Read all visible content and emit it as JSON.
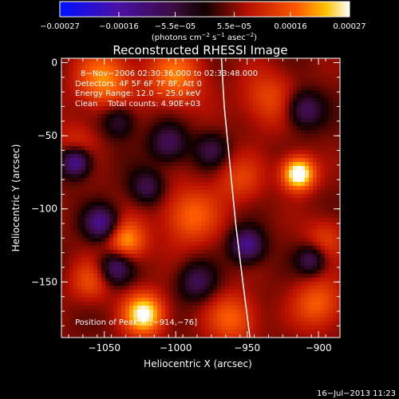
{
  "chart_data": {
    "type": "heatmap",
    "title": "Reconstructed RHESSI Image",
    "xlabel": "Heliocentric X (arcsec)",
    "ylabel": "Heliocentric Y (arcsec)",
    "xlim": [
      -1080,
      -885
    ],
    "ylim": [
      -188,
      3
    ],
    "x_ticks": [
      -1050,
      -1000,
      -950,
      -900
    ],
    "x_tick_labels": [
      "−1050",
      "−1000",
      "−950",
      "−900"
    ],
    "y_ticks": [
      0,
      -50,
      -100,
      -150
    ],
    "y_tick_labels": [
      "0",
      "−50",
      "−100",
      "−150"
    ],
    "colorbar": {
      "min": -0.00027,
      "max": 0.00027,
      "ticks": [
        -0.00027,
        -0.00016,
        -5.5e-05,
        5.5e-05,
        0.00016,
        0.00027
      ],
      "tick_labels": [
        "−0.00027",
        "−0.00016",
        "−5.5e−05",
        "5.5e−05",
        "0.00016",
        "0.00027"
      ],
      "units_line": "(photons cm",
      "units_exp1": "−2",
      "units_mid": " s",
      "units_exp2": "−1",
      "units_tail": " asec",
      "units_exp3": "−2",
      "units_close": ")"
    },
    "annotations": {
      "time_range": "8−Nov−2006 02:30:36.000 to 02:33:48.000",
      "detectors": "Detectors: 4F 5F 6F 7F 8F, Att 0",
      "energy": "Energy Range: 12.0 − 25.0 keV",
      "clean": "Clean    Total counts: 4.90E+03",
      "peak": "Position of Peak = [−914,−76]"
    },
    "peak": {
      "x": -914,
      "y": -76
    },
    "limb_curve": [
      [
        -968,
        3
      ],
      [
        -966,
        -30
      ],
      [
        -962,
        -70
      ],
      [
        -958,
        -110
      ],
      [
        -953,
        -150
      ],
      [
        -948,
        -188
      ]
    ],
    "sources": [
      {
        "x": -914,
        "y": -76,
        "amp": 1.0,
        "w": 8
      },
      {
        "x": -1022,
        "y": -172,
        "amp": 0.85,
        "w": 10
      },
      {
        "x": -1035,
        "y": -122,
        "amp": 0.6,
        "w": 10
      },
      {
        "x": -1050,
        "y": -12,
        "amp": 0.55,
        "w": 14
      },
      {
        "x": -1000,
        "y": -10,
        "amp": 0.5,
        "w": 14
      },
      {
        "x": -990,
        "y": -105,
        "amp": 0.45,
        "w": 14
      },
      {
        "x": -960,
        "y": -175,
        "amp": 0.45,
        "w": 12
      },
      {
        "x": -900,
        "y": -165,
        "amp": 0.45,
        "w": 12
      },
      {
        "x": -935,
        "y": -25,
        "amp": 0.35,
        "w": 14
      },
      {
        "x": -955,
        "y": -80,
        "amp": 0.3,
        "w": 12
      },
      {
        "x": -1060,
        "y": -150,
        "amp": 0.35,
        "w": 10
      },
      {
        "x": -895,
        "y": -120,
        "amp": 0.3,
        "w": 10
      },
      {
        "x": -1070,
        "y": -55,
        "amp": 0.25,
        "w": 10
      },
      {
        "x": -1070,
        "y": -68,
        "amp": -0.8,
        "w": 7
      },
      {
        "x": -1052,
        "y": -110,
        "amp": -0.7,
        "w": 8
      },
      {
        "x": -1042,
        "y": -140,
        "amp": -0.6,
        "w": 8
      },
      {
        "x": -950,
        "y": -125,
        "amp": -0.7,
        "w": 8
      },
      {
        "x": -1005,
        "y": -55,
        "amp": -0.5,
        "w": 9
      },
      {
        "x": -1020,
        "y": -85,
        "amp": -0.45,
        "w": 8
      },
      {
        "x": -910,
        "y": -32,
        "amp": -0.55,
        "w": 9
      },
      {
        "x": -985,
        "y": -150,
        "amp": -0.45,
        "w": 9
      },
      {
        "x": -975,
        "y": -60,
        "amp": -0.4,
        "w": 8
      },
      {
        "x": -905,
        "y": -135,
        "amp": -0.5,
        "w": 7
      },
      {
        "x": -1040,
        "y": -40,
        "amp": -0.4,
        "w": 8
      }
    ]
  },
  "footer": {
    "timestamp": "16−Jul−2013 11:23"
  }
}
